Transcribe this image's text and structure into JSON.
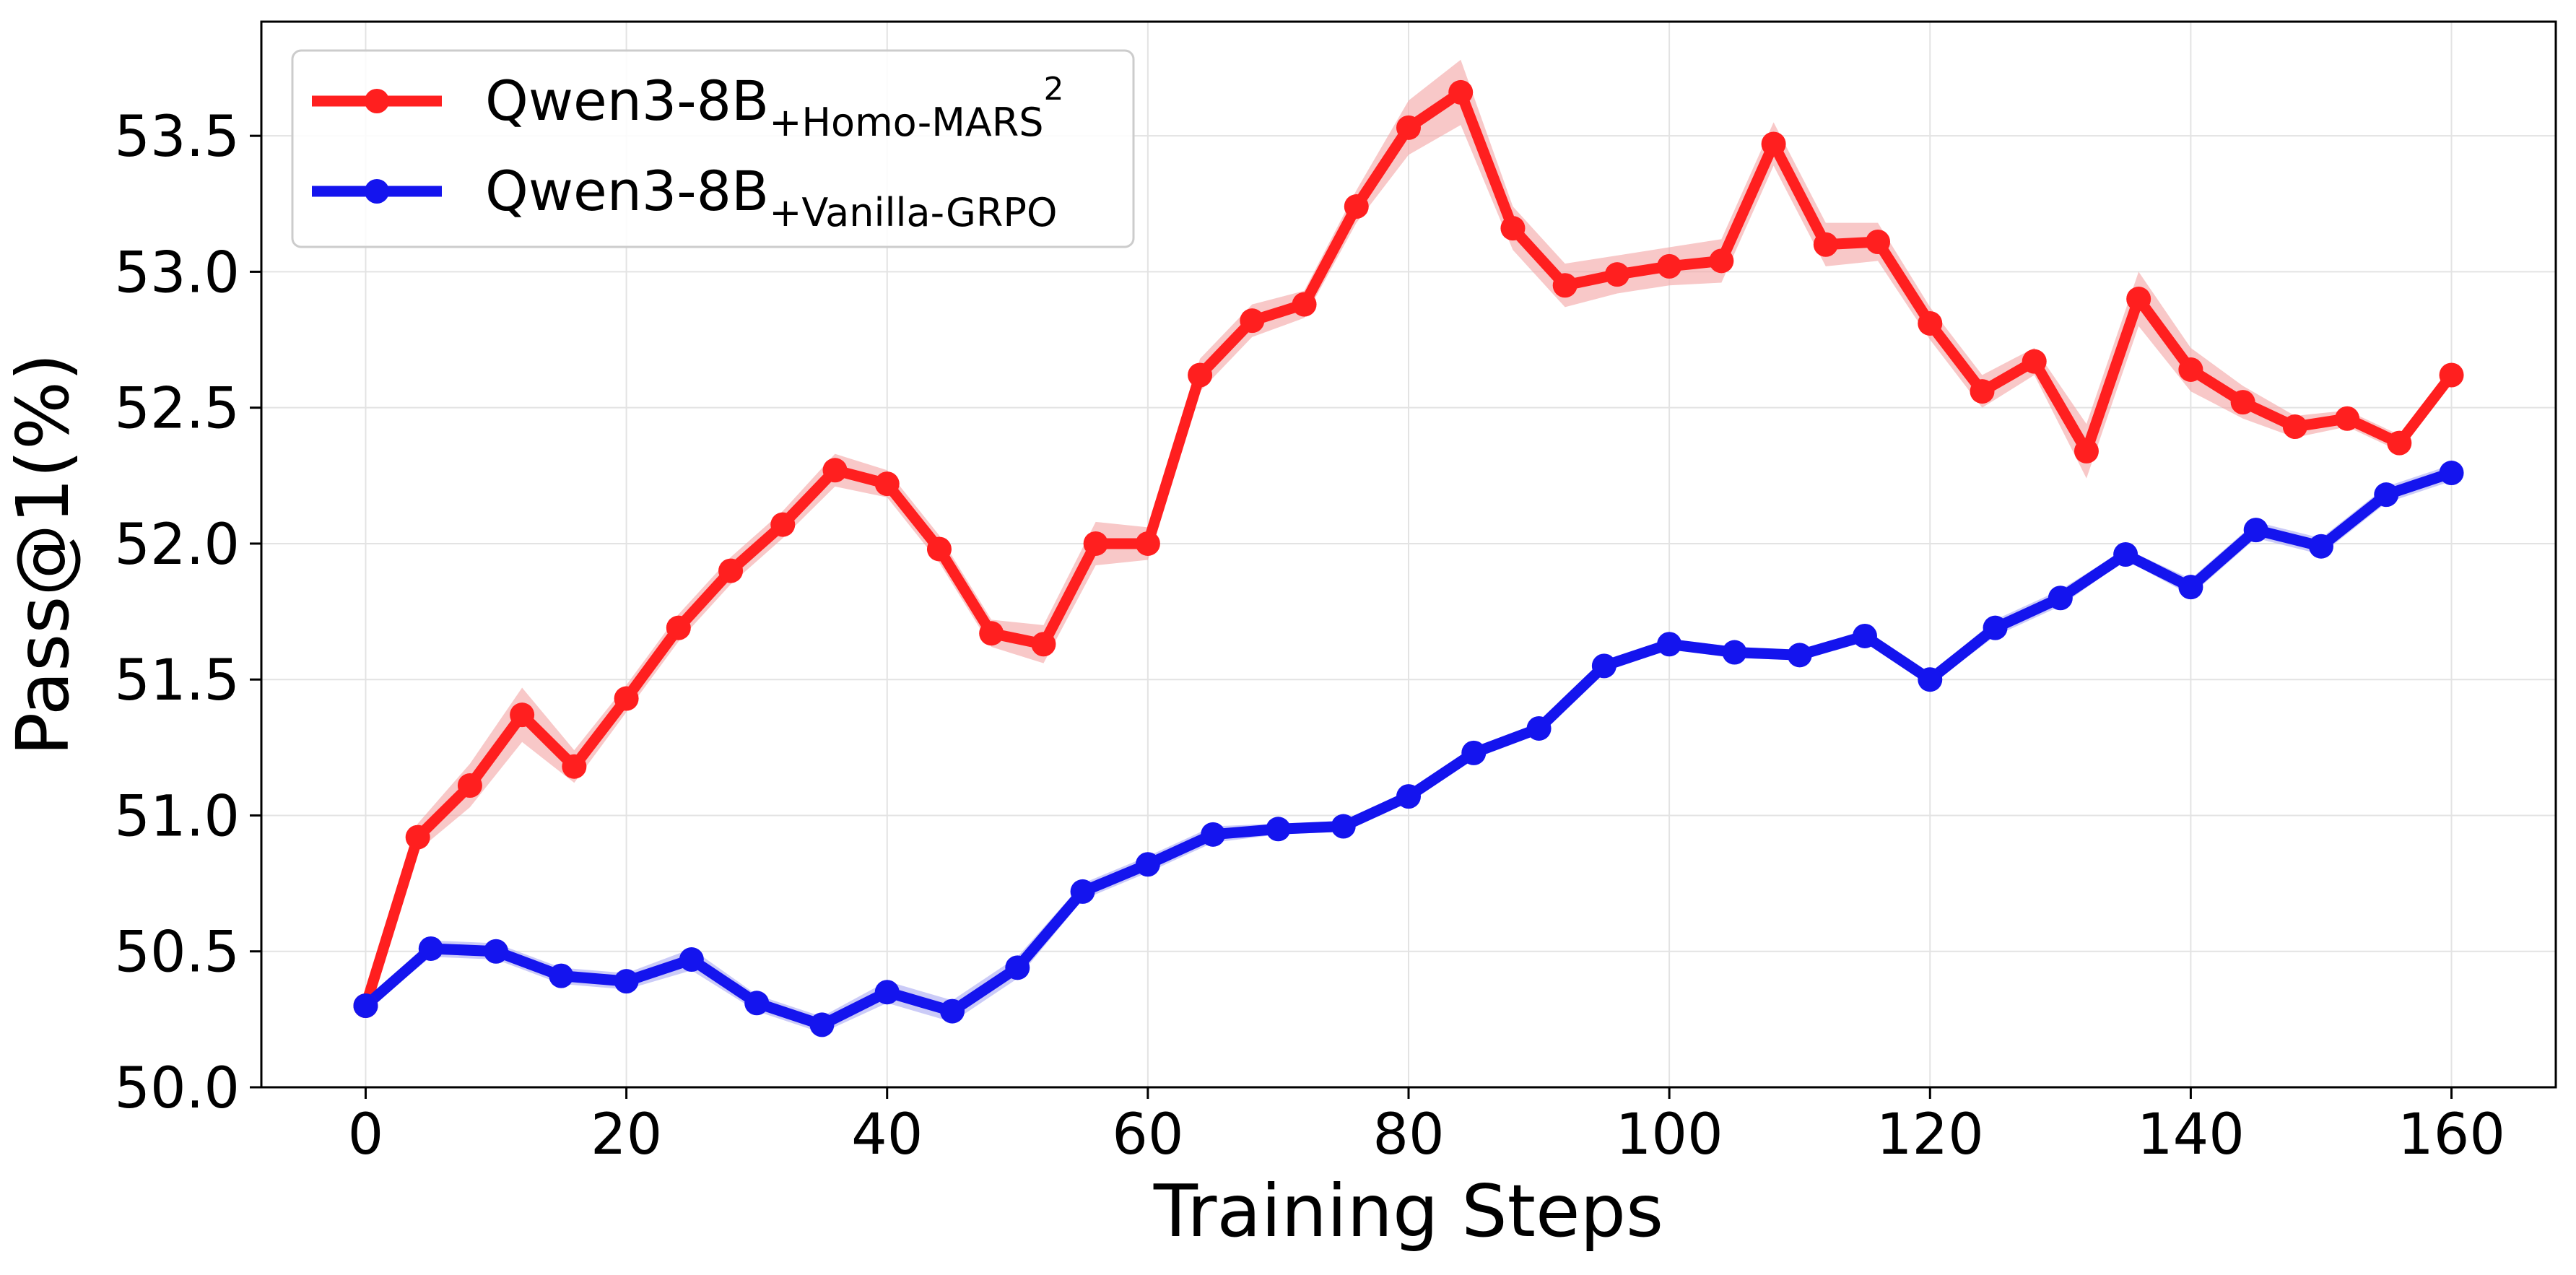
{
  "chart_data": {
    "type": "line",
    "title": "",
    "xlabel": "Training Steps",
    "ylabel": "Pass@1(%)",
    "xlim": [
      -8,
      168
    ],
    "ylim": [
      50.0,
      53.92
    ],
    "xticks": [
      0,
      20,
      40,
      60,
      80,
      100,
      120,
      140,
      160
    ],
    "xtick_labels": [
      "0",
      "20",
      "40",
      "60",
      "80",
      "100",
      "120",
      "140",
      "160"
    ],
    "yticks": [
      50.0,
      50.5,
      51.0,
      51.5,
      52.0,
      52.5,
      53.0,
      53.5
    ],
    "ytick_labels": [
      "50.0",
      "50.5",
      "51.0",
      "51.5",
      "52.0",
      "52.5",
      "53.0",
      "53.5"
    ],
    "grid": true,
    "legend_position": "top-left",
    "series": [
      {
        "name": "Qwen3-8B",
        "subscript": "+Homo-MARS",
        "superscript": "2",
        "color": "#ff1f1f",
        "band_color": "#f4a3a3",
        "x": [
          0,
          4,
          8,
          12,
          16,
          20,
          24,
          28,
          32,
          36,
          40,
          44,
          48,
          52,
          56,
          60,
          64,
          68,
          72,
          76,
          80,
          84,
          88,
          92,
          96,
          100,
          104,
          108,
          112,
          116,
          120,
          124,
          128,
          132,
          136,
          140,
          144,
          148,
          152,
          156,
          160
        ],
        "values": [
          50.3,
          50.92,
          51.11,
          51.37,
          51.18,
          51.43,
          51.69,
          51.9,
          52.07,
          52.27,
          52.22,
          51.98,
          51.67,
          51.63,
          52.0,
          52.0,
          52.62,
          52.82,
          52.88,
          53.24,
          53.53,
          53.66,
          53.16,
          52.95,
          52.99,
          53.02,
          53.04,
          53.47,
          53.1,
          53.11,
          52.81,
          52.56,
          52.67,
          52.34,
          52.9,
          52.64,
          52.52,
          52.43,
          52.46,
          52.37,
          52.62
        ],
        "band": [
          0.02,
          0.05,
          0.08,
          0.1,
          0.06,
          0.05,
          0.05,
          0.05,
          0.05,
          0.06,
          0.05,
          0.05,
          0.05,
          0.07,
          0.08,
          0.06,
          0.06,
          0.06,
          0.05,
          0.06,
          0.1,
          0.12,
          0.08,
          0.08,
          0.07,
          0.07,
          0.08,
          0.08,
          0.08,
          0.07,
          0.06,
          0.06,
          0.05,
          0.1,
          0.1,
          0.08,
          0.06,
          0.04,
          0.03,
          0.03,
          0.03
        ]
      },
      {
        "name": "Qwen3-8B",
        "subscript": "+Vanilla-GRPO",
        "superscript": "",
        "color": "#1414ee",
        "band_color": "#a9a9f2",
        "x": [
          0,
          5,
          10,
          15,
          20,
          25,
          30,
          35,
          40,
          45,
          50,
          55,
          60,
          65,
          70,
          75,
          80,
          85,
          90,
          95,
          100,
          105,
          110,
          115,
          120,
          125,
          130,
          135,
          140,
          145,
          150,
          155,
          160
        ],
        "values": [
          50.3,
          50.51,
          50.5,
          50.41,
          50.39,
          50.47,
          50.31,
          50.23,
          50.35,
          50.28,
          50.44,
          50.72,
          50.82,
          50.93,
          50.95,
          50.96,
          51.07,
          51.23,
          51.32,
          51.55,
          51.63,
          51.6,
          51.59,
          51.66,
          51.5,
          51.69,
          51.8,
          51.96,
          51.84,
          52.05,
          51.99,
          52.18,
          52.26
        ],
        "band": [
          0.02,
          0.03,
          0.03,
          0.03,
          0.03,
          0.04,
          0.03,
          0.03,
          0.04,
          0.04,
          0.04,
          0.03,
          0.03,
          0.03,
          0.02,
          0.02,
          0.02,
          0.02,
          0.02,
          0.02,
          0.02,
          0.02,
          0.02,
          0.02,
          0.02,
          0.03,
          0.03,
          0.02,
          0.03,
          0.03,
          0.03,
          0.03,
          0.03
        ]
      }
    ]
  }
}
